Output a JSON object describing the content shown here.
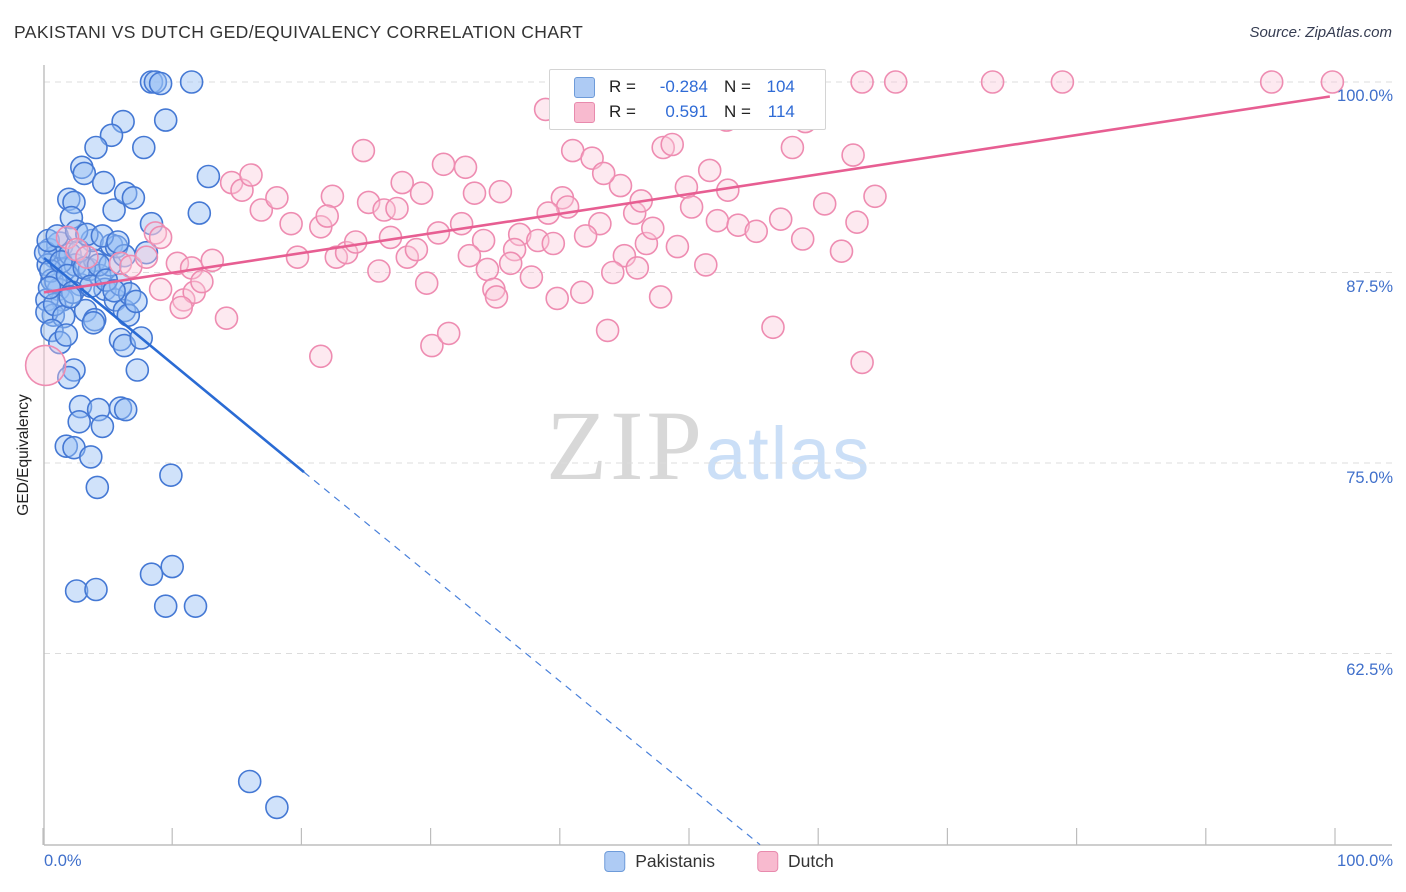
{
  "title": "PAKISTANI VS DUTCH GED/EQUIVALENCY CORRELATION CHART",
  "source": "Source: ZipAtlas.com",
  "y_axis_label": "GED/Equivalency",
  "watermark": {
    "zip": "ZIP",
    "atlas": "atlas"
  },
  "legend_box": {
    "rows": [
      {
        "series": "Pakistanis",
        "r_label": "R =",
        "r_value": "-0.284",
        "n_label": "N =",
        "n_value": "104",
        "fill": "#AECBF4",
        "stroke": "#6E9BD9"
      },
      {
        "series": "Dutch",
        "r_label": "R =",
        "r_value": "0.591",
        "n_label": "N =",
        "n_value": "114",
        "fill": "#F8BACF",
        "stroke": "#E88AAD"
      }
    ]
  },
  "bottom_legend": [
    {
      "label": "Pakistanis",
      "fill": "#AECBF4",
      "stroke": "#6E9BD9"
    },
    {
      "label": "Dutch",
      "fill": "#F8BACF",
      "stroke": "#E88AAD"
    }
  ],
  "axes": {
    "x_left_label": "0.0%",
    "x_right_label": "100.0%",
    "y_right_labels": [
      "100.0%",
      "87.5%",
      "75.0%",
      "62.5%"
    ]
  },
  "chart_data": {
    "type": "scatter",
    "title": "PAKISTANI VS DUTCH GED/EQUIVALENCY CORRELATION CHART",
    "xlabel": "",
    "ylabel": "GED/Equivalency",
    "x_range_pct": [
      0,
      100
    ],
    "y_gridlines_pct": [
      100,
      87.5,
      75,
      62.5
    ],
    "y_bottom_pct": 49.9,
    "x_tick_count": 11,
    "grid": "dashed-horizontal",
    "legend_position": "top-center",
    "series": [
      {
        "name": "Pakistanis",
        "R": -0.284,
        "N": 104,
        "stroke": "#4478D4",
        "fill": "rgba(150,190,245,0.45)",
        "points": [
          [
            8.4,
            100
          ],
          [
            8.7,
            100
          ],
          [
            9.1,
            99.9
          ],
          [
            11.5,
            100
          ],
          [
            6.2,
            97.4
          ],
          [
            9.5,
            97.5
          ],
          [
            5.3,
            96.5
          ],
          [
            4.1,
            95.7
          ],
          [
            7.8,
            95.7
          ],
          [
            3.0,
            94.4
          ],
          [
            3.2,
            94.0
          ],
          [
            4.7,
            93.4
          ],
          [
            12.8,
            93.8
          ],
          [
            2.0,
            92.3
          ],
          [
            2.4,
            92.1
          ],
          [
            5.5,
            91.6
          ],
          [
            6.4,
            92.7
          ],
          [
            7.0,
            92.4
          ],
          [
            2.2,
            91.1
          ],
          [
            8.4,
            90.7
          ],
          [
            12.1,
            91.4
          ],
          [
            0.5,
            89.0
          ],
          [
            0.9,
            88.5
          ],
          [
            1.3,
            89.3,
            13
          ],
          [
            0.4,
            88.0
          ],
          [
            1.7,
            87.7
          ],
          [
            0.7,
            87.0
          ],
          [
            2.1,
            88.7
          ],
          [
            2.5,
            88.0
          ],
          [
            1.2,
            86.4
          ],
          [
            1.5,
            85.7
          ],
          [
            2.9,
            86.7
          ],
          [
            3.6,
            87.7
          ],
          [
            4.0,
            88.3
          ],
          [
            4.4,
            87.3
          ],
          [
            5.2,
            88.0
          ],
          [
            4.8,
            86.4
          ],
          [
            5.6,
            85.7
          ],
          [
            6.0,
            86.7
          ],
          [
            3.3,
            85.0
          ],
          [
            4.0,
            84.4
          ],
          [
            6.3,
            85.0
          ],
          [
            6.7,
            86.1
          ],
          [
            0.3,
            85.7
          ],
          [
            0.8,
            84.7
          ],
          [
            3.8,
            89.6
          ],
          [
            5.3,
            89.3
          ],
          [
            5.7,
            89.2
          ],
          [
            6.3,
            88.6
          ],
          [
            8.0,
            88.8
          ],
          [
            3.9,
            84.2
          ],
          [
            6.0,
            83.1
          ],
          [
            6.3,
            82.7
          ],
          [
            7.6,
            83.2
          ],
          [
            2.4,
            81.1
          ],
          [
            2.0,
            80.6
          ],
          [
            7.3,
            81.1
          ],
          [
            2.9,
            78.7
          ],
          [
            4.3,
            78.5
          ],
          [
            6.0,
            78.6
          ],
          [
            6.4,
            78.5
          ],
          [
            2.8,
            77.7
          ],
          [
            4.6,
            77.4
          ],
          [
            1.8,
            76.1
          ],
          [
            2.4,
            76.0
          ],
          [
            3.7,
            75.4
          ],
          [
            4.2,
            73.4
          ],
          [
            9.9,
            74.2
          ],
          [
            2.6,
            66.6
          ],
          [
            4.1,
            66.7
          ],
          [
            8.4,
            67.7
          ],
          [
            10.0,
            68.2
          ],
          [
            9.5,
            65.6
          ],
          [
            11.8,
            65.6
          ],
          [
            16.0,
            54.1
          ],
          [
            18.1,
            52.4
          ],
          [
            0.2,
            88.8
          ],
          [
            0.6,
            87.6
          ],
          [
            1.0,
            86.9
          ],
          [
            1.4,
            88.2
          ],
          [
            1.9,
            87.3
          ],
          [
            2.3,
            86.2
          ],
          [
            2.8,
            88.9
          ],
          [
            3.2,
            87.8
          ],
          [
            3.7,
            86.6
          ],
          [
            4.3,
            88.0
          ],
          [
            4.9,
            87.0
          ],
          [
            5.5,
            86.3
          ],
          [
            0.3,
            84.9
          ],
          [
            0.9,
            85.4
          ],
          [
            1.6,
            84.6
          ],
          [
            2.1,
            85.9
          ],
          [
            0.4,
            89.6
          ],
          [
            1.1,
            89.9
          ],
          [
            2.6,
            90.2
          ],
          [
            3.4,
            90.0
          ],
          [
            4.6,
            89.9
          ],
          [
            5.8,
            89.5
          ],
          [
            0.7,
            83.7
          ],
          [
            1.3,
            82.9
          ],
          [
            6.6,
            84.7
          ],
          [
            7.2,
            85.6
          ],
          [
            0.5,
            86.5
          ],
          [
            1.8,
            83.4
          ]
        ]
      },
      {
        "name": "Dutch",
        "R": 0.591,
        "N": 114,
        "stroke": "#EE8CB1",
        "fill": "rgba(250,200,218,0.40)",
        "points": [
          [
            38.9,
            98.2
          ],
          [
            63.4,
            100
          ],
          [
            66.0,
            100
          ],
          [
            73.5,
            100
          ],
          [
            78.9,
            100
          ],
          [
            95.1,
            100
          ],
          [
            99.8,
            100
          ],
          [
            50.9,
            100
          ],
          [
            52.6,
            98.9
          ],
          [
            52.9,
            97.5
          ],
          [
            59.0,
            97.4
          ],
          [
            41.0,
            95.5
          ],
          [
            42.5,
            95.0
          ],
          [
            48.0,
            95.7
          ],
          [
            48.7,
            95.9
          ],
          [
            51.6,
            94.2
          ],
          [
            58.0,
            95.7
          ],
          [
            62.7,
            95.2
          ],
          [
            44.7,
            93.2
          ],
          [
            49.8,
            93.1
          ],
          [
            50.2,
            91.8
          ],
          [
            35.4,
            92.8
          ],
          [
            40.2,
            92.4
          ],
          [
            40.6,
            91.8
          ],
          [
            39.1,
            91.4
          ],
          [
            43.1,
            90.7
          ],
          [
            45.8,
            91.4
          ],
          [
            52.2,
            90.9
          ],
          [
            53.8,
            90.6
          ],
          [
            36.9,
            90.0
          ],
          [
            38.3,
            89.6
          ],
          [
            36.5,
            89.0
          ],
          [
            45.0,
            88.6
          ],
          [
            46.7,
            89.4
          ],
          [
            46.0,
            87.8
          ],
          [
            39.8,
            85.8
          ],
          [
            41.7,
            86.2
          ],
          [
            47.8,
            85.9
          ],
          [
            43.7,
            83.7
          ],
          [
            56.5,
            83.9
          ],
          [
            63.4,
            81.6
          ],
          [
            24.8,
            95.5
          ],
          [
            25.2,
            92.1
          ],
          [
            26.4,
            91.6
          ],
          [
            26.9,
            89.8
          ],
          [
            27.4,
            91.7
          ],
          [
            28.2,
            88.5
          ],
          [
            29.3,
            92.7
          ],
          [
            29.7,
            86.8
          ],
          [
            30.1,
            82.7
          ],
          [
            31.0,
            94.6
          ],
          [
            31.4,
            83.5
          ],
          [
            32.4,
            90.7
          ],
          [
            32.7,
            94.4
          ],
          [
            33.4,
            92.7
          ],
          [
            34.1,
            89.6
          ],
          [
            34.4,
            87.7
          ],
          [
            34.9,
            86.4
          ],
          [
            35.1,
            85.9
          ],
          [
            14.6,
            93.4
          ],
          [
            15.4,
            92.9
          ],
          [
            16.1,
            93.9
          ],
          [
            16.9,
            91.6
          ],
          [
            18.1,
            92.4
          ],
          [
            19.2,
            90.7
          ],
          [
            19.7,
            88.5
          ],
          [
            21.5,
            90.5
          ],
          [
            22.4,
            92.5
          ],
          [
            22.7,
            88.5
          ],
          [
            23.5,
            88.8
          ],
          [
            8.7,
            90.1
          ],
          [
            9.1,
            89.8
          ],
          [
            6.0,
            88.1
          ],
          [
            6.8,
            87.9
          ],
          [
            8.0,
            88.5
          ],
          [
            10.4,
            88.1
          ],
          [
            11.5,
            87.8
          ],
          [
            13.1,
            88.3
          ],
          [
            14.2,
            84.5
          ],
          [
            10.9,
            85.7
          ],
          [
            11.7,
            86.2
          ],
          [
            12.3,
            86.9
          ],
          [
            10.7,
            85.2
          ],
          [
            9.1,
            86.4
          ],
          [
            21.5,
            82.0
          ],
          [
            0.2,
            81.4,
            20
          ],
          [
            1.9,
            89.8
          ],
          [
            2.6,
            89.0
          ],
          [
            3.4,
            88.5
          ],
          [
            36.2,
            88.1
          ],
          [
            37.8,
            87.2
          ],
          [
            42.0,
            89.9
          ],
          [
            44.1,
            87.5
          ],
          [
            46.3,
            92.2
          ],
          [
            49.1,
            89.2
          ],
          [
            51.3,
            88.0
          ],
          [
            53.0,
            92.9
          ],
          [
            55.2,
            90.2
          ],
          [
            57.1,
            91.0
          ],
          [
            58.8,
            89.7
          ],
          [
            60.5,
            92.0
          ],
          [
            61.8,
            88.9
          ],
          [
            63.0,
            90.8
          ],
          [
            64.4,
            92.5
          ],
          [
            47.2,
            90.4
          ],
          [
            43.4,
            94.0
          ],
          [
            39.5,
            89.4
          ],
          [
            33.0,
            88.6
          ],
          [
            30.6,
            90.1
          ],
          [
            28.9,
            89.0
          ],
          [
            27.8,
            93.4
          ],
          [
            26.0,
            87.6
          ],
          [
            24.2,
            89.5
          ],
          [
            22.0,
            91.2
          ]
        ]
      }
    ],
    "trend_lines": [
      {
        "series": "Pakistanis",
        "color": "#2A6BD4",
        "solid": [
          [
            0.08,
            88.45
          ],
          [
            20.2,
            74.4
          ]
        ],
        "dashed": [
          [
            20.2,
            74.4
          ],
          [
            55.5,
            49.95
          ]
        ]
      },
      {
        "series": "Dutch",
        "color": "#E75E92",
        "solid": [
          [
            0.08,
            86.2
          ],
          [
            99.6,
            99.05
          ]
        ]
      }
    ],
    "colors": {
      "axis_value_text": "#4070CB",
      "gridline": "#DCDCDC",
      "axis_line": "#BDBDBD"
    }
  }
}
